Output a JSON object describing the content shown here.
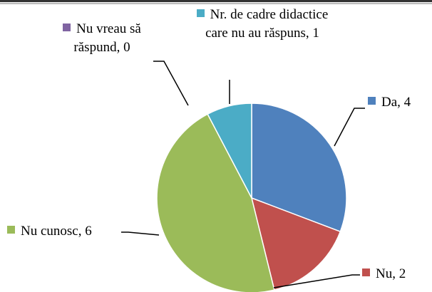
{
  "chart_data": {
    "type": "pie",
    "categories": [
      "Da",
      "Nu",
      "Nu cunosc",
      "Nu vreau să răspund",
      "Nr. de cadre didactice care nu au răspuns"
    ],
    "values": [
      4,
      2,
      6,
      0,
      1
    ],
    "value_labels": [
      "Da, 4",
      "Nu, 2",
      "Nu cunosc, 6",
      "Nu vreau să răspund, 0",
      "Nr. de cadre didactice care nu au răspuns, 1"
    ],
    "colors": [
      "#4f81bd",
      "#c0504d",
      "#9bbb59",
      "#8064a2",
      "#4bacc6"
    ]
  }
}
